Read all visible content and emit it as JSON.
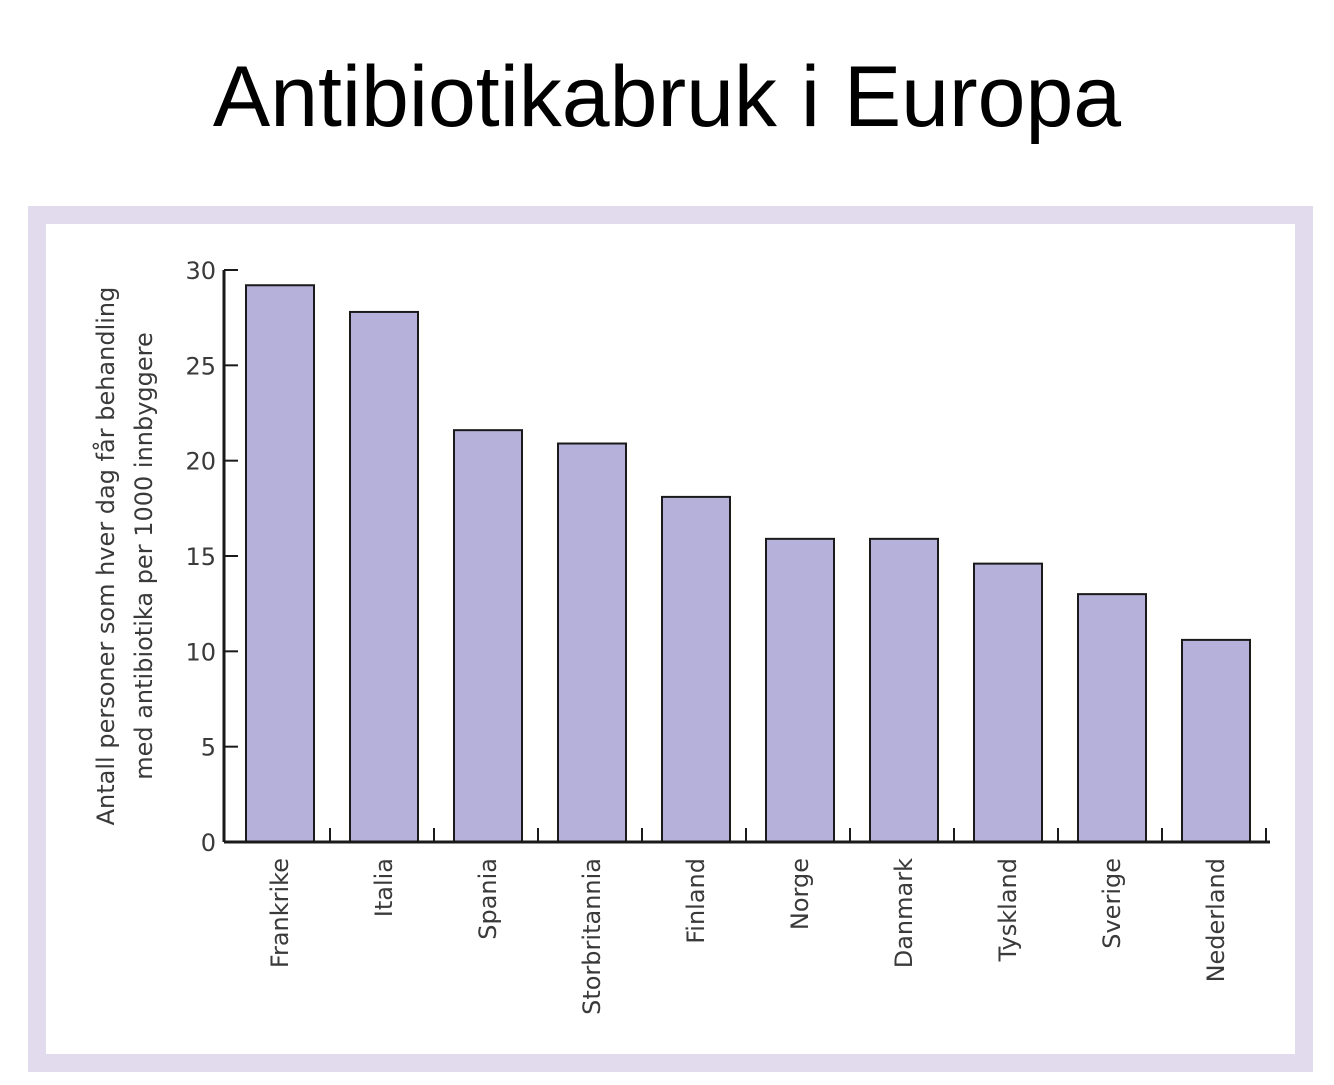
{
  "slide": {
    "title": "Antibiotikabruk i Europa"
  },
  "colors": {
    "bar_fill": "#b6b1da",
    "bar_stroke": "#1a1a1a",
    "axis": "#1a1a1a",
    "frame": "#e2dbed"
  },
  "chart_data": {
    "type": "bar",
    "title": "",
    "xlabel": "",
    "ylabel_lines": [
      "Antall personer som hver dag får behandling",
      "med antibiotika per 1000 innbyggere"
    ],
    "categories": [
      "Frankrike",
      "Italia",
      "Spania",
      "Storbritannia",
      "Finland",
      "Norge",
      "Danmark",
      "Tyskland",
      "Sverige",
      "Nederland"
    ],
    "values": [
      29.2,
      27.8,
      21.6,
      20.9,
      18.1,
      15.9,
      15.9,
      14.6,
      13.0,
      10.6
    ],
    "ylim": [
      0,
      30
    ],
    "yticks": [
      0,
      5,
      10,
      15,
      20,
      25,
      30
    ],
    "grid": false,
    "legend": "none"
  }
}
